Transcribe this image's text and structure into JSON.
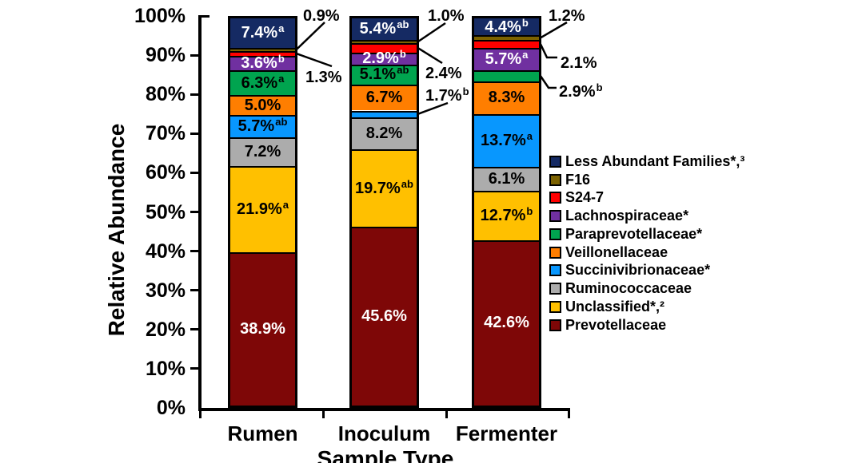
{
  "chart_data": {
    "type": "bar",
    "subtype": "stacked-percentage",
    "title": "",
    "xlabel": "Sample Type",
    "ylabel": "Relative Abundance",
    "ylim": [
      0,
      100
    ],
    "ytick_step": 10,
    "ytick_suffix": "%",
    "grid": false,
    "legend_position": "right",
    "categories": [
      "Rumen",
      "Inoculum",
      "Fermenter"
    ],
    "series_bottom_to_top": [
      {
        "name": "Prevotellaceae",
        "color": "#7E0707",
        "label_color": "#FFFFFF",
        "values": [
          38.9,
          45.6,
          42.6
        ],
        "labels": [
          {
            "text": "38.9%",
            "sup": "",
            "placement": "inside"
          },
          {
            "text": "45.6%",
            "sup": "",
            "placement": "inside"
          },
          {
            "text": "42.6%",
            "sup": "",
            "placement": "inside"
          }
        ]
      },
      {
        "name": "Unclassified*,²",
        "color": "#FFC000",
        "label_color": "#000000",
        "values": [
          21.9,
          19.7,
          12.7
        ],
        "labels": [
          {
            "text": "21.9%",
            "sup": "a",
            "placement": "inside"
          },
          {
            "text": "19.7%",
            "sup": "ab",
            "placement": "inside"
          },
          {
            "text": "12.7%",
            "sup": "b",
            "placement": "inside"
          }
        ]
      },
      {
        "name": "Ruminococcaceae",
        "color": "#ACACAC",
        "label_color": "#000000",
        "values": [
          7.2,
          8.2,
          6.1
        ],
        "labels": [
          {
            "text": "7.2%",
            "sup": "",
            "placement": "inside"
          },
          {
            "text": "8.2%",
            "sup": "",
            "placement": "inside"
          },
          {
            "text": "6.1%",
            "sup": "",
            "placement": "inside"
          }
        ]
      },
      {
        "name": "Succinivibrionaceae*",
        "color": "#0897FE",
        "label_color": "#000000",
        "values": [
          5.7,
          1.7,
          13.7
        ],
        "labels": [
          {
            "text": "5.7%",
            "sup": "ab",
            "placement": "inside"
          },
          {
            "text": "1.7%",
            "sup": "b",
            "placement": "callout"
          },
          {
            "text": "13.7%",
            "sup": "a",
            "placement": "inside"
          }
        ]
      },
      {
        "name": "Veillonellaceae",
        "color": "#FF7E00",
        "label_color": "#000000",
        "values": [
          5.0,
          6.7,
          8.3
        ],
        "labels": [
          {
            "text": "5.0%",
            "sup": "",
            "placement": "inside"
          },
          {
            "text": "6.7%",
            "sup": "",
            "placement": "inside"
          },
          {
            "text": "8.3%",
            "sup": "",
            "placement": "inside"
          }
        ]
      },
      {
        "name": "Paraprevotellaceae*",
        "color": "#00A44F",
        "label_color": "#000000",
        "values": [
          6.3,
          5.1,
          2.9
        ],
        "labels": [
          {
            "text": "6.3%",
            "sup": "a",
            "placement": "inside"
          },
          {
            "text": "5.1%",
            "sup": "ab",
            "placement": "inside"
          },
          {
            "text": "2.9%",
            "sup": "b",
            "placement": "callout"
          }
        ]
      },
      {
        "name": "Lachnospiraceae*",
        "color": "#7030A0",
        "label_color": "#FFFFFF",
        "values": [
          3.6,
          2.9,
          5.7
        ],
        "labels": [
          {
            "text": "3.6%",
            "sup": "b",
            "placement": "inside"
          },
          {
            "text": "2.9%",
            "sup": "b",
            "placement": "inside"
          },
          {
            "text": "5.7%",
            "sup": "a",
            "placement": "inside"
          }
        ]
      },
      {
        "name": "S24-7",
        "color": "#FF0000",
        "label_color": "#000000",
        "values": [
          1.3,
          2.4,
          2.1
        ],
        "labels": [
          {
            "text": "1.3%",
            "sup": "",
            "placement": "callout"
          },
          {
            "text": "2.4%",
            "sup": "",
            "placement": "callout"
          },
          {
            "text": "2.1%",
            "sup": "",
            "placement": "callout"
          }
        ]
      },
      {
        "name": "F16",
        "color": "#7C6200",
        "label_color": "#000000",
        "values": [
          0.9,
          1.0,
          1.2
        ],
        "labels": [
          {
            "text": "0.9%",
            "sup": "",
            "placement": "callout"
          },
          {
            "text": "1.0%",
            "sup": "",
            "placement": "callout"
          },
          {
            "text": "1.2%",
            "sup": "",
            "placement": "callout"
          }
        ]
      },
      {
        "name": "Less Abundant Families*,³",
        "color": "#152A63",
        "label_color": "#FFFFFF",
        "values": [
          7.4,
          5.4,
          4.4
        ],
        "labels": [
          {
            "text": "7.4%",
            "sup": "a",
            "placement": "inside"
          },
          {
            "text": "5.4%",
            "sup": "ab",
            "placement": "inside"
          },
          {
            "text": "4.4%",
            "sup": "b",
            "placement": "inside"
          }
        ]
      }
    ]
  }
}
